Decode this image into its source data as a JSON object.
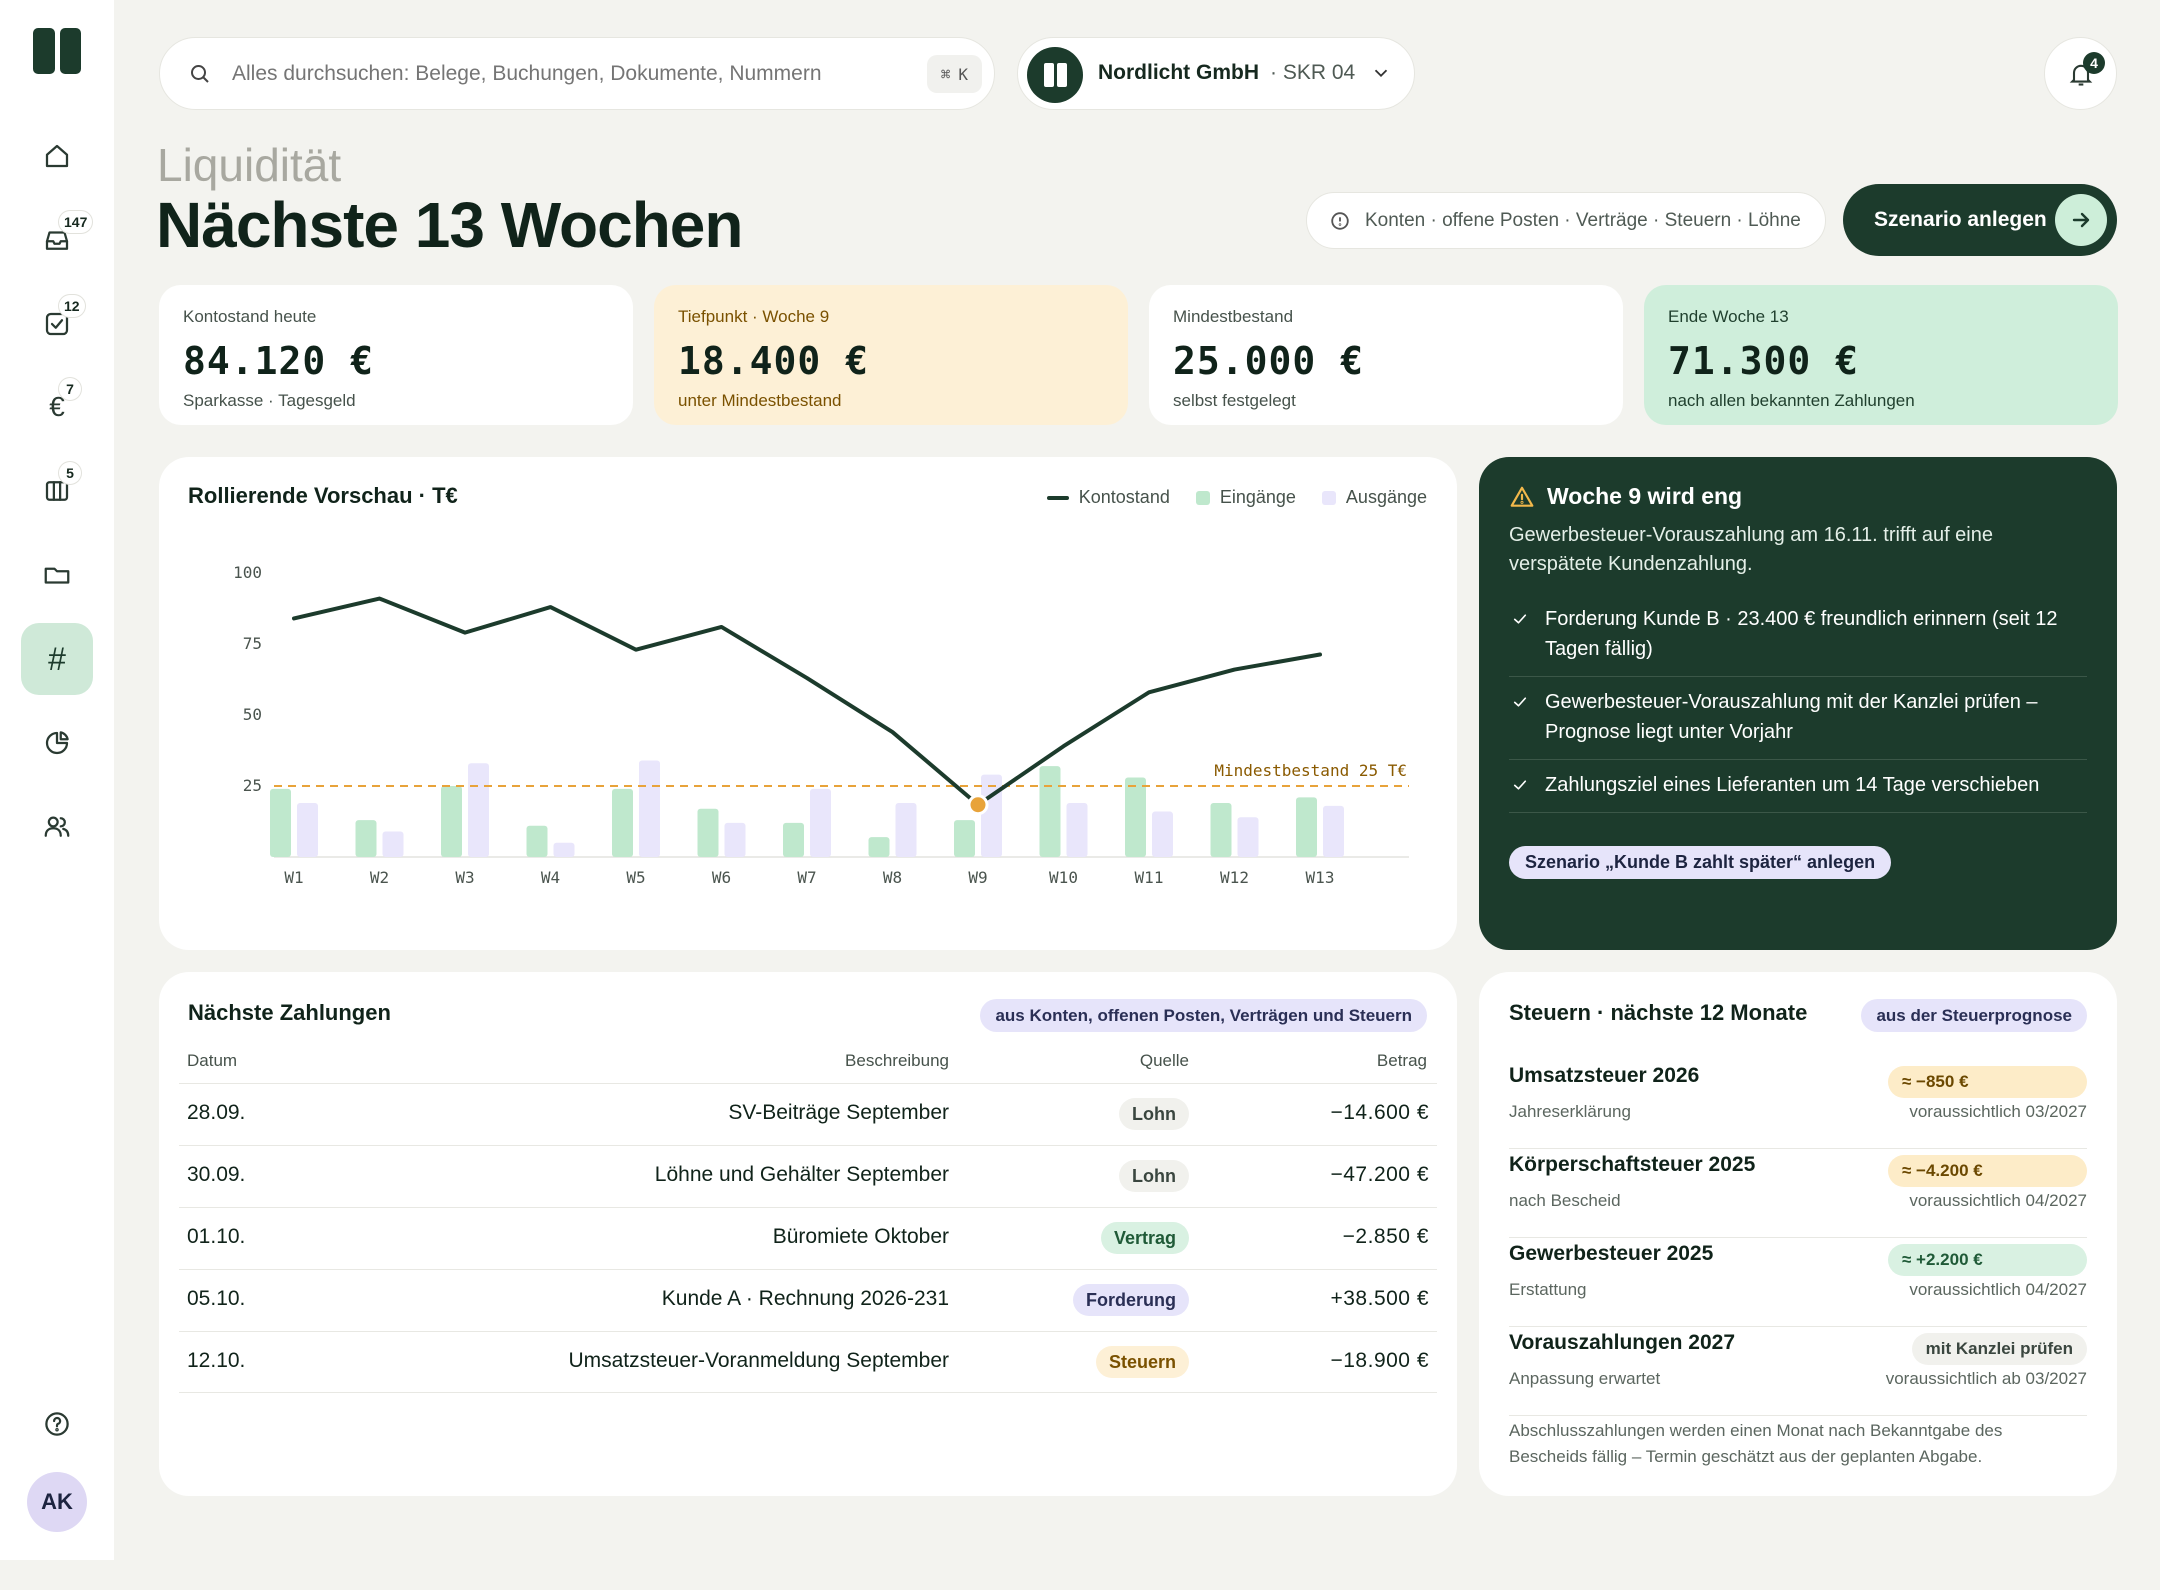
{
  "nav": {
    "badges": {
      "inbox": "147",
      "tasks": "12",
      "finance": "7",
      "board": "5"
    },
    "avatar": "AK"
  },
  "search": {
    "placeholder": "Alles durchsuchen: Belege, Buchungen, Dokumente, Nummern",
    "shortcut_symbol": "⌘",
    "shortcut_key": "K"
  },
  "company": {
    "name": "Nordlicht GmbH",
    "chart_of_accounts": "· SKR 04"
  },
  "notifications": {
    "count": "4"
  },
  "header": {
    "eyebrow": "Liquidität",
    "title": "Nächste 13 Wochen",
    "sources": "Konten · offene Posten · Verträge · Steuern · Löhne",
    "cta": "Szenario anlegen"
  },
  "kpis": [
    {
      "label": "Kontostand heute",
      "value": "84.120 €",
      "sub": "Sparkasse · Tagesgeld"
    },
    {
      "label": "Tiefpunkt · Woche 9",
      "value": "18.400 €",
      "sub": "unter Mindestbestand"
    },
    {
      "label": "Mindestbestand",
      "value": "25.000 €",
      "sub": "selbst festgelegt"
    },
    {
      "label": "Ende Woche 13",
      "value": "71.300 €",
      "sub": "nach allen bekannten Zahlungen"
    }
  ],
  "chart": {
    "title": "Rollierende Vorschau · T€",
    "legend": {
      "balance": "Kontostand",
      "inflows": "Eingänge",
      "outflows": "Ausgänge"
    },
    "threshold_label": "Mindestbestand 25 T€",
    "colors": {
      "line": "#1c3b2c",
      "inflows": "#bfe8cd",
      "outflows": "#e9e6fb",
      "threshold": "#e8a33a",
      "low_point": "#e8a33a"
    }
  },
  "chart_data": {
    "type": "bar",
    "categories": [
      "W1",
      "W2",
      "W3",
      "W4",
      "W5",
      "W6",
      "W7",
      "W8",
      "W9",
      "W10",
      "W11",
      "W12",
      "W13"
    ],
    "series": [
      {
        "name": "Kontostand",
        "type": "line",
        "values": [
          84,
          91,
          79,
          88,
          73,
          81,
          63,
          44,
          18.4,
          39,
          58,
          66,
          71.3
        ]
      },
      {
        "name": "Eingänge",
        "type": "bar",
        "values": [
          24,
          13,
          25,
          11,
          24,
          17,
          12,
          7,
          13,
          32,
          28,
          19,
          21
        ]
      },
      {
        "name": "Ausgänge",
        "type": "bar",
        "values": [
          19,
          9,
          33,
          5,
          34,
          12,
          24,
          19,
          29,
          19,
          16,
          14,
          18
        ]
      }
    ],
    "threshold": 25,
    "yticks": [
      25,
      50,
      75,
      100
    ],
    "ylim": [
      0,
      100
    ],
    "low_point_index": 8
  },
  "alert": {
    "title": "Woche 9 wird eng",
    "text": "Gewerbesteuer-Vorauszahlung am 16.11. trifft auf eine verspätete Kundenzahlung.",
    "items": [
      "Forderung Kunde B · 23.400 € freundlich erinnern (seit 12 Tagen fällig)",
      "Gewerbesteuer-Vorauszahlung mit der Kanzlei prüfen – Prognose liegt unter Vorjahr",
      "Zahlungsziel eines Lieferanten um 14 Tage verschieben"
    ],
    "button": "Szenario „Kunde B zahlt später“ anlegen"
  },
  "payments": {
    "title": "Nächste Zahlungen",
    "tag": "aus Konten, offenen Posten, Verträgen und Steuern",
    "columns": {
      "date": "Datum",
      "description": "Beschreibung",
      "source": "Quelle",
      "amount": "Betrag"
    },
    "rows": [
      {
        "date": "28.09.",
        "description": "SV-Beiträge September",
        "source": "Lohn",
        "amount": "−14.600 €"
      },
      {
        "date": "30.09.",
        "description": "Löhne und Gehälter September",
        "source": "Lohn",
        "amount": "−47.200 €"
      },
      {
        "date": "01.10.",
        "description": "Büromiete Oktober",
        "source": "Vertrag",
        "amount": "−2.850 €"
      },
      {
        "date": "05.10.",
        "description": "Kunde A · Rechnung 2026-231",
        "source": "Forderung",
        "amount": "+38.500 €"
      },
      {
        "date": "12.10.",
        "description": "Umsatzsteuer-Voranmeldung September",
        "source": "Steuern",
        "amount": "−18.900 €"
      }
    ]
  },
  "taxes": {
    "title": "Steuern · nächste 12 Monate",
    "tag": "aus der Steuerprognose",
    "rows": [
      {
        "name": "Umsatzsteuer 2026",
        "sub": "Jahreserklärung",
        "amount": "≈ −850 €",
        "when": "voraussichtlich 03/2027"
      },
      {
        "name": "Körperschaftsteuer 2025",
        "sub": "nach Bescheid",
        "amount": "≈ −4.200 €",
        "when": "voraussichtlich 04/2027"
      },
      {
        "name": "Gewerbesteuer 2025",
        "sub": "Erstattung",
        "amount": "≈ +2.200 €",
        "when": "voraussichtlich 04/2027"
      },
      {
        "name": "Vorauszahlungen 2027",
        "sub": "Anpassung erwartet",
        "amount": "mit Kanzlei prüfen",
        "when": "voraussichtlich ab 03/2027"
      }
    ],
    "note": "Abschlusszahlungen werden einen Monat nach Bekanntgabe des Bescheids fällig – Termin geschätzt aus der geplanten Abgabe."
  }
}
